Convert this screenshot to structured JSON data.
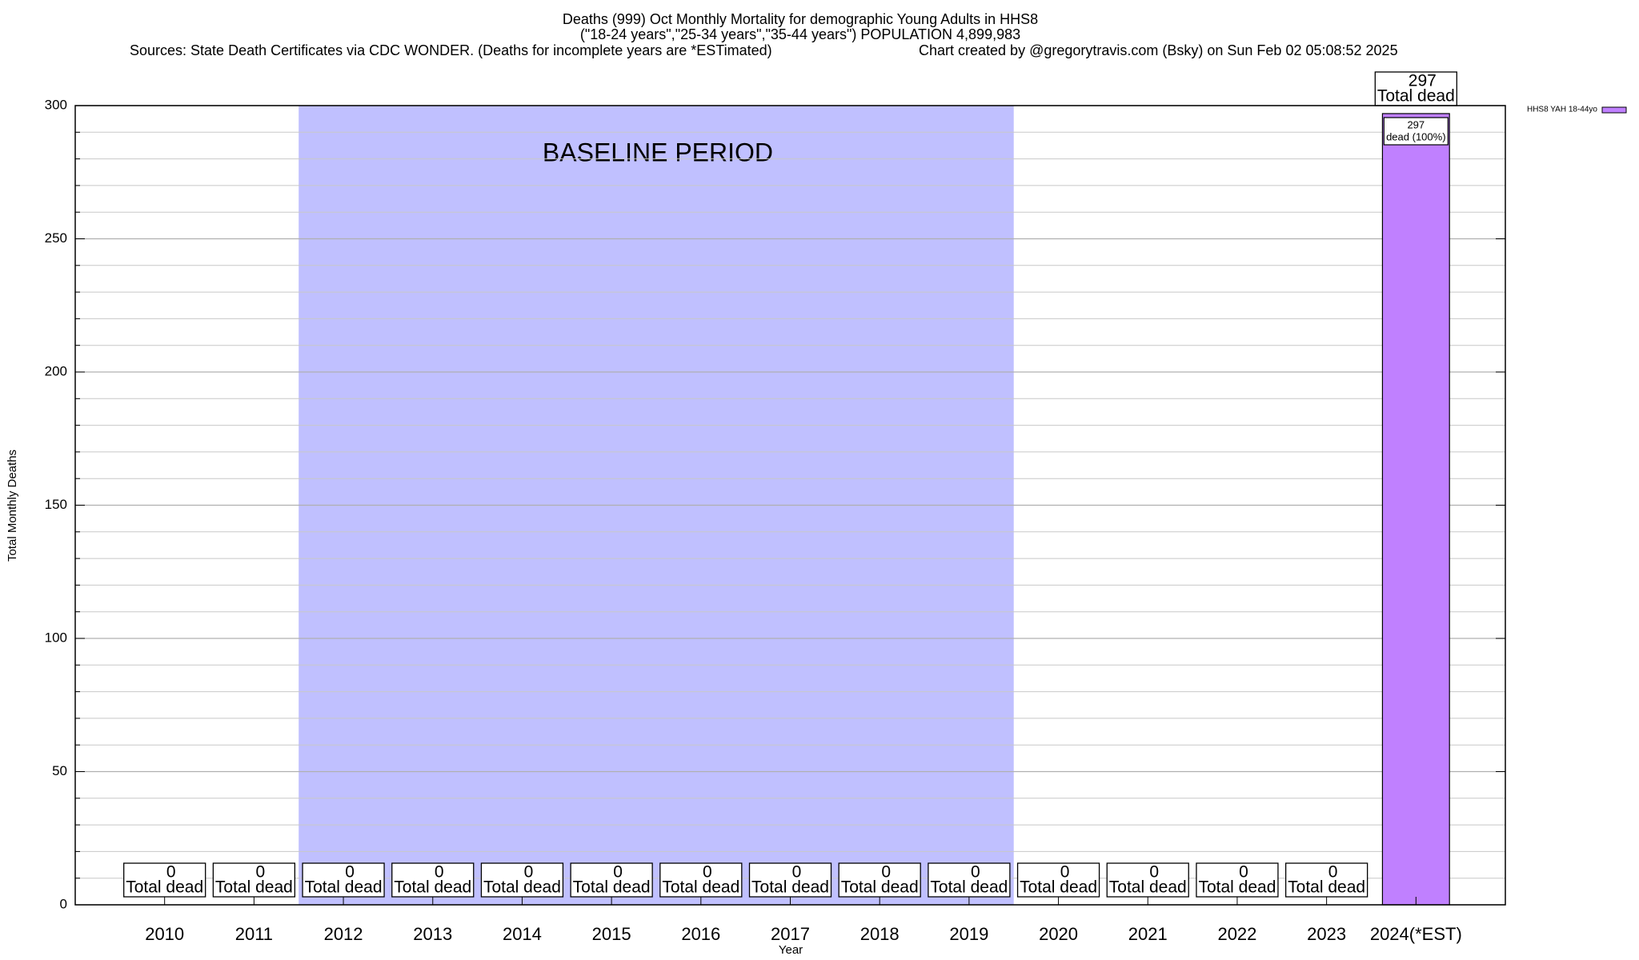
{
  "chart_data": {
    "type": "bar",
    "title": "Deaths (999) Oct Monthly Mortality for demographic Young Adults in HHS8",
    "subtitle": "(\"18-24 years\",\"25-34 years\",\"35-44 years\") POPULATION 4,899,983",
    "sources": "Sources: State Death Certificates via CDC WONDER. (Deaths for incomplete years are *ESTimated)",
    "credit": "Chart created by @gregorytravis.com (Bsky) on Sun Feb 02 05:08:52 2025",
    "x_label": "Year",
    "y_label": "Total Monthly Deaths",
    "categories": [
      "2010",
      "2011",
      "2012",
      "2013",
      "2014",
      "2015",
      "2016",
      "2017",
      "2018",
      "2019",
      "2020",
      "2021",
      "2022",
      "2023",
      "2024(*EST)"
    ],
    "series": [
      {
        "name": "HHS8 YAH 18-44yo",
        "color": "#c080ff",
        "values": [
          0,
          0,
          0,
          0,
          0,
          0,
          0,
          0,
          0,
          0,
          0,
          0,
          0,
          0,
          297
        ],
        "segment_label": "dead (100%)"
      }
    ],
    "total_label": "Total dead",
    "baseline": {
      "label": "BASELINE PERIOD",
      "from": "2012",
      "to": "2019",
      "color": "#c0c0ff"
    },
    "ylim": [
      0,
      300
    ],
    "yticks": [
      0,
      50,
      100,
      150,
      200,
      250,
      300
    ],
    "yminorticks": [
      10,
      20,
      30,
      40,
      60,
      70,
      80,
      90,
      110,
      120,
      130,
      140,
      160,
      170,
      180,
      190,
      210,
      220,
      230,
      240,
      260,
      270,
      280,
      290
    ],
    "grid": true,
    "legend": "top-right"
  }
}
